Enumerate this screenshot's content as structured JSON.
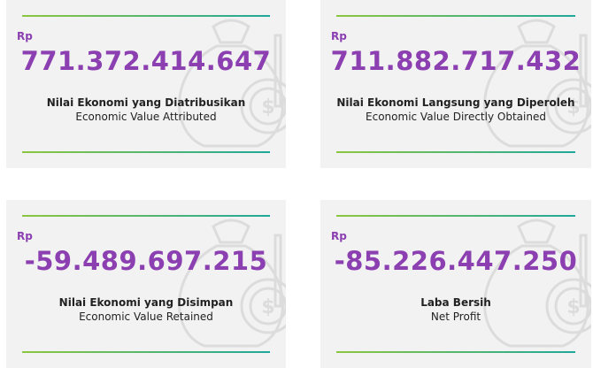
{
  "cards": [
    {
      "currency": "Rp",
      "value": "771.372.414.647",
      "label": "Nilai Ekonomi yang Diatribusikan",
      "sublabel": "Economic Value Attributed"
    },
    {
      "currency": "Rp",
      "value": "711.882.717.432",
      "label": "Nilai Ekonomi Langsung yang Diperoleh",
      "sublabel": "Economic Value Directly Obtained"
    },
    {
      "currency": "Rp",
      "value": "-59.489.697.215",
      "label": "Nilai Ekonomi yang Disimpan",
      "sublabel": "Economic Value Retained"
    },
    {
      "currency": "Rp",
      "value": "-85.226.447.250",
      "label": "Laba Bersih",
      "sublabel": "Net Profit"
    }
  ]
}
